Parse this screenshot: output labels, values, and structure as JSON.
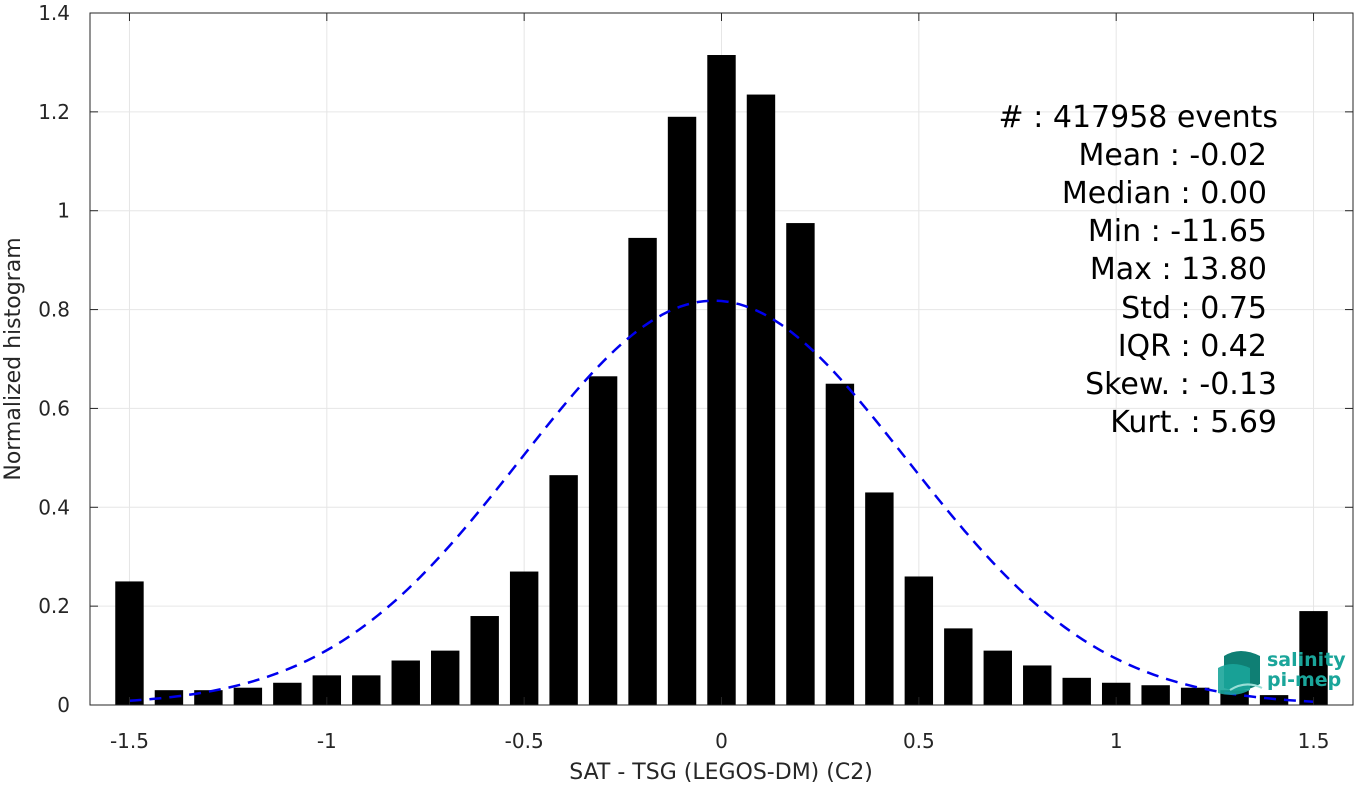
{
  "chart_data": {
    "type": "bar",
    "xlabel": "SAT - TSG (LEGOS-DM) (C2)",
    "ylabel": "Normalized histogram",
    "xlim": [
      -1.6,
      1.6
    ],
    "ylim": [
      0,
      1.4
    ],
    "xticks": [
      -1.5,
      -1,
      -0.5,
      0,
      0.5,
      1,
      1.5
    ],
    "xtick_labels": [
      "-1.5",
      "-1",
      "-0.5",
      "0",
      "0.5",
      "1",
      "1.5"
    ],
    "yticks": [
      0,
      0.2,
      0.4,
      0.6,
      0.8,
      1,
      1.2,
      1.4
    ],
    "ytick_labels": [
      "0",
      "0.2",
      "0.4",
      "0.6",
      "0.8",
      "1",
      "1.2",
      "1.4"
    ],
    "grid": true,
    "bar_color": "#000000",
    "bin_centers": [
      -1.5,
      -1.4,
      -1.3,
      -1.2,
      -1.1,
      -1.0,
      -0.9,
      -0.8,
      -0.7,
      -0.6,
      -0.5,
      -0.4,
      -0.3,
      -0.2,
      -0.1,
      0.0,
      0.1,
      0.2,
      0.3,
      0.4,
      0.5,
      0.6,
      0.7,
      0.8,
      0.9,
      1.0,
      1.1,
      1.2,
      1.3,
      1.4,
      1.5
    ],
    "values": [
      0.25,
      0.03,
      0.03,
      0.035,
      0.045,
      0.06,
      0.06,
      0.09,
      0.11,
      0.18,
      0.27,
      0.465,
      0.665,
      0.945,
      1.19,
      1.315,
      1.235,
      0.975,
      0.65,
      0.43,
      0.26,
      0.155,
      0.11,
      0.08,
      0.055,
      0.045,
      0.04,
      0.035,
      0.03,
      0.02,
      0.19
    ],
    "fit_curve": {
      "style": "dashed",
      "color": "#0000ee",
      "mean": -0.02,
      "std": 0.49,
      "peak": 0.818,
      "x_range": [
        -1.5,
        1.5
      ]
    },
    "stats": [
      "#  : 417958 events",
      "Mean : -0.02",
      "Median : 0.00",
      "Min : -11.65",
      "Max : 13.80",
      "Std : 0.75",
      "IQR : 0.42",
      "Skew. : -0.13",
      "Kurt. : 5.69"
    ]
  },
  "logo": {
    "line1": "salinity",
    "line2": "pi-mep",
    "color": "#1aa59a"
  }
}
